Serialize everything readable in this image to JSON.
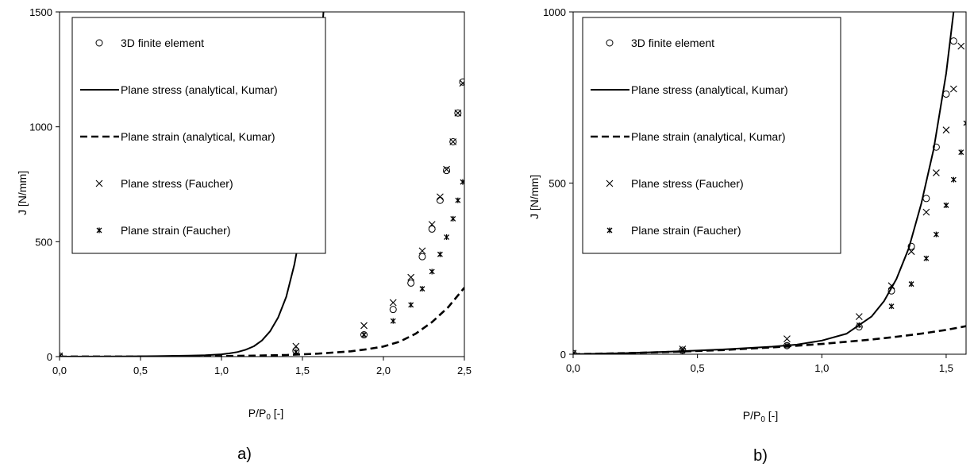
{
  "chart_data": [
    {
      "type": "scatter",
      "panel_label": "a)",
      "xlabel_main": "P/P",
      "xlabel_sub": "0",
      "xlabel_tail": " [-]",
      "ylabel": "J [N/mm]",
      "xlim": [
        0,
        2.5
      ],
      "ylim": [
        0,
        1500
      ],
      "xticks": [
        0,
        0.5,
        1.0,
        1.5,
        2.0,
        2.5
      ],
      "xtick_labels": [
        "0,0",
        "0,5",
        "1,0",
        "1,5",
        "2,0",
        "2,5"
      ],
      "yticks": [
        0,
        500,
        1000,
        1500
      ],
      "ytick_labels": [
        "0",
        "500",
        "1000",
        "1500"
      ],
      "legend_position": "upper-left",
      "legend": [
        "3D finite element",
        "Plane stress (analytical, Kumar)",
        "Plane strain (analytical, Kumar)",
        "Plane stress (Faucher)",
        "Plane strain (Faucher)"
      ],
      "series": [
        {
          "name": "3D finite element",
          "style": "circle",
          "x": [
            0,
            1.46,
            1.88,
            2.06,
            2.17,
            2.24,
            2.3,
            2.35,
            2.39,
            2.43,
            2.46,
            2.49
          ],
          "y": [
            2,
            25,
            95,
            205,
            320,
            435,
            555,
            680,
            810,
            935,
            1060,
            1195
          ]
        },
        {
          "name": "Plane stress (analytical, Kumar)",
          "style": "solid",
          "x": [
            0,
            0.2,
            0.4,
            0.6,
            0.8,
            0.9,
            1.0,
            1.05,
            1.1,
            1.15,
            1.2,
            1.25,
            1.3,
            1.35,
            1.4,
            1.45,
            1.5,
            1.55,
            1.6,
            1.63
          ],
          "y": [
            0,
            0.5,
            1,
            2,
            4,
            6,
            10,
            14,
            20,
            30,
            45,
            70,
            110,
            170,
            260,
            400,
            590,
            850,
            1200,
            1500
          ]
        },
        {
          "name": "Plane strain (analytical, Kumar)",
          "style": "dashed",
          "x": [
            0,
            0.5,
            1.0,
            1.2,
            1.4,
            1.6,
            1.8,
            1.9,
            2.0,
            2.1,
            2.2,
            2.3,
            2.4,
            2.5
          ],
          "y": [
            0,
            0.5,
            2,
            4,
            7,
            13,
            23,
            32,
            44,
            65,
            100,
            150,
            215,
            300
          ]
        },
        {
          "name": "Plane stress (Faucher)",
          "style": "x",
          "x": [
            0,
            1.46,
            1.88,
            2.06,
            2.17,
            2.24,
            2.3,
            2.35,
            2.39,
            2.43,
            2.46,
            2.49
          ],
          "y": [
            3,
            45,
            135,
            235,
            345,
            460,
            575,
            695,
            815,
            935,
            1060,
            1190
          ]
        },
        {
          "name": "Plane strain (Faucher)",
          "style": "star",
          "x": [
            0,
            1.46,
            1.88,
            2.06,
            2.17,
            2.24,
            2.3,
            2.35,
            2.39,
            2.43,
            2.46,
            2.49
          ],
          "y": [
            1,
            20,
            95,
            155,
            225,
            295,
            370,
            445,
            520,
            600,
            680,
            760
          ]
        }
      ]
    },
    {
      "type": "scatter",
      "panel_label": "b)",
      "xlabel_main": "P/P",
      "xlabel_sub": "0",
      "xlabel_tail": " [-]",
      "ylabel": "J [N/mm]",
      "xlim": [
        0,
        1.58
      ],
      "ylim": [
        0,
        1000
      ],
      "xticks": [
        0,
        0.5,
        1.0,
        1.5
      ],
      "xtick_labels": [
        "0,0",
        "0,5",
        "1,0",
        "1,5"
      ],
      "yticks": [
        0,
        500,
        1000
      ],
      "ytick_labels": [
        "0",
        "500",
        "1000"
      ],
      "legend_position": "upper-left",
      "legend": [
        "3D finite element",
        "Plane stress (analytical, Kumar)",
        "Plane strain (analytical, Kumar)",
        "Plane stress (Faucher)",
        "Plane strain (Faucher)"
      ],
      "series": [
        {
          "name": "3D finite element",
          "style": "circle",
          "x": [
            0,
            0.44,
            0.86,
            1.15,
            1.28,
            1.36,
            1.42,
            1.46,
            1.5,
            1.53
          ],
          "y": [
            2,
            12,
            25,
            80,
            185,
            315,
            455,
            605,
            760,
            915
          ]
        },
        {
          "name": "Plane stress (analytical, Kumar)",
          "style": "solid",
          "x": [
            0,
            0.2,
            0.4,
            0.6,
            0.8,
            0.9,
            1.0,
            1.1,
            1.2,
            1.25,
            1.3,
            1.35,
            1.4,
            1.45,
            1.5,
            1.53
          ],
          "y": [
            0,
            3,
            8,
            14,
            22,
            28,
            40,
            60,
            110,
            155,
            220,
            310,
            440,
            600,
            820,
            1000
          ]
        },
        {
          "name": "Plane strain (analytical, Kumar)",
          "style": "dashed",
          "x": [
            0,
            0.2,
            0.4,
            0.6,
            0.8,
            1.0,
            1.2,
            1.3,
            1.4,
            1.5,
            1.58
          ],
          "y": [
            0,
            3,
            7,
            12,
            20,
            30,
            43,
            51,
            60,
            71,
            82
          ]
        },
        {
          "name": "Plane stress (Faucher)",
          "style": "x",
          "x": [
            0,
            0.44,
            0.86,
            1.15,
            1.28,
            1.36,
            1.42,
            1.46,
            1.5,
            1.53,
            1.56
          ],
          "y": [
            3,
            15,
            45,
            110,
            200,
            300,
            415,
            530,
            655,
            775,
            900
          ]
        },
        {
          "name": "Plane strain (Faucher)",
          "style": "star",
          "x": [
            0,
            0.44,
            0.86,
            1.15,
            1.28,
            1.36,
            1.42,
            1.46,
            1.5,
            1.53,
            1.56,
            1.58
          ],
          "y": [
            1,
            10,
            25,
            85,
            140,
            205,
            280,
            350,
            435,
            510,
            590,
            675
          ]
        }
      ]
    }
  ]
}
